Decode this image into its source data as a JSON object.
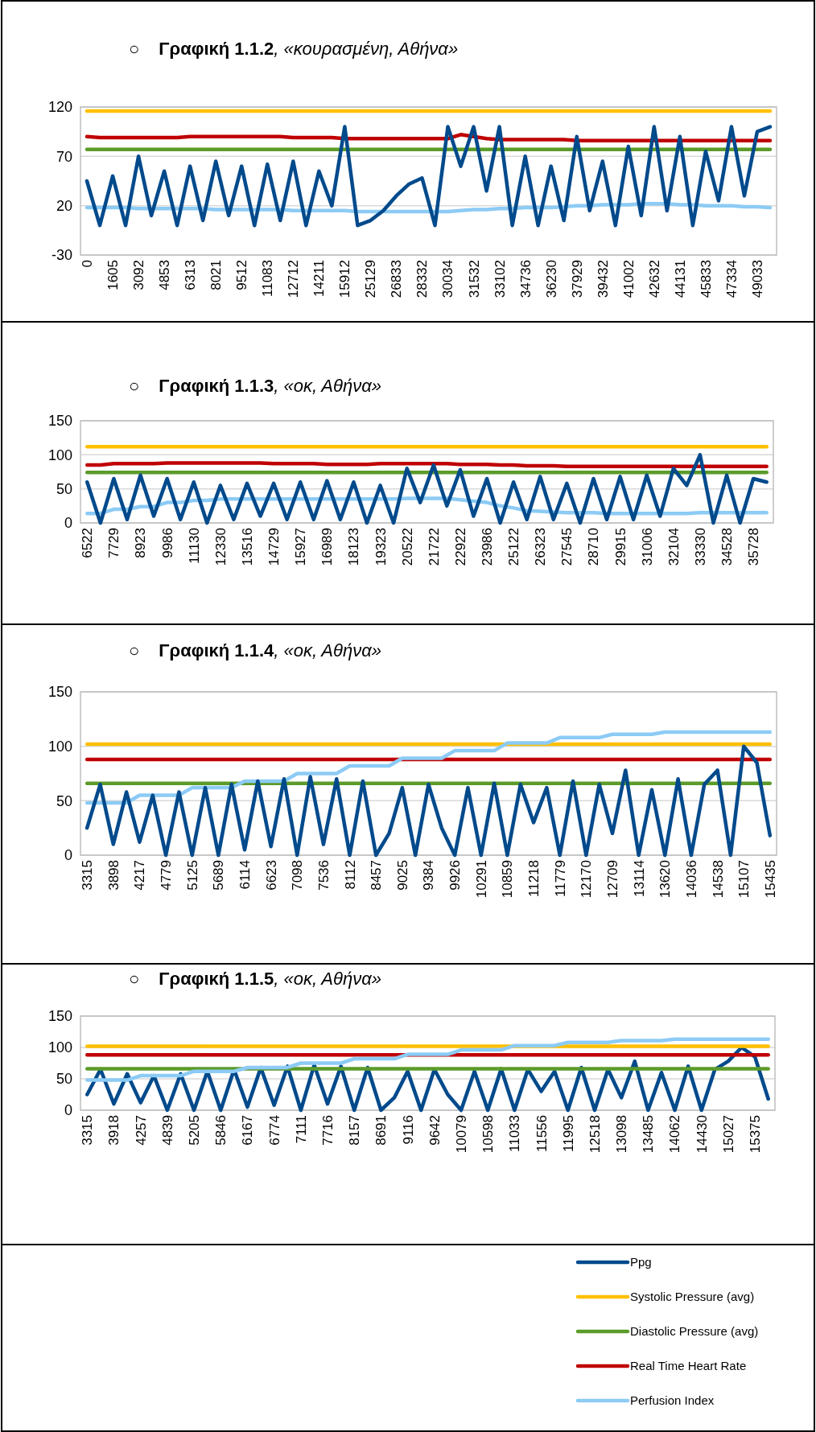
{
  "chart_data": [
    {
      "type": "line",
      "title": "○ Γραφική 1.1.2, «κουρασμένη, Αθήνα»",
      "ylim": [
        -30,
        120
      ],
      "yticks": [
        -30,
        20,
        70,
        120
      ],
      "grid": "y",
      "categories": [
        "0",
        null,
        "1605",
        null,
        "3092",
        null,
        "4853",
        null,
        "6313",
        null,
        "8021",
        null,
        "9512",
        null,
        "11083",
        null,
        "12712",
        null,
        "14211",
        null,
        "15912",
        null,
        "25129",
        null,
        "26833",
        null,
        "28332",
        null,
        "30034",
        null,
        "31532",
        null,
        "33102",
        null,
        "34736",
        null,
        "36230",
        null,
        "37929",
        null,
        "39432",
        null,
        "41002",
        null,
        "42632",
        null,
        "44131",
        null,
        "45833",
        null,
        "47334",
        null,
        "49033",
        null
      ],
      "series": [
        {
          "color": "#ffc000",
          "values": [
            116,
            116,
            116,
            116,
            116,
            116,
            116,
            116,
            116,
            116,
            116,
            116,
            116,
            116,
            116,
            116,
            116,
            116,
            116,
            116,
            116,
            116,
            116,
            116,
            116,
            116,
            116,
            116,
            116,
            116,
            116,
            116,
            116,
            116,
            116,
            116,
            116,
            116,
            116,
            116,
            116,
            116,
            116,
            116,
            116,
            116,
            116,
            116,
            116,
            116,
            116,
            116,
            116,
            116
          ]
        },
        {
          "color": "#5b9b2a",
          "values": [
            77,
            77,
            77,
            77,
            77,
            77,
            77,
            77,
            77,
            77,
            77,
            77,
            77,
            77,
            77,
            77,
            77,
            77,
            77,
            77,
            77,
            77,
            77,
            77,
            77,
            77,
            77,
            77,
            77,
            77,
            77,
            77,
            77,
            77,
            77,
            77,
            77,
            77,
            77,
            77,
            77,
            77,
            77,
            77,
            77,
            77,
            77,
            77,
            77,
            77,
            77,
            77,
            77,
            77
          ]
        },
        {
          "color": "#8ccbf5",
          "values": [
            18,
            18,
            18,
            18,
            17,
            17,
            17,
            17,
            17,
            17,
            16,
            16,
            16,
            16,
            16,
            16,
            15,
            15,
            15,
            15,
            15,
            14,
            14,
            14,
            14,
            14,
            14,
            14,
            14,
            15,
            16,
            16,
            17,
            17,
            18,
            18,
            18,
            19,
            20,
            20,
            21,
            21,
            21,
            22,
            22,
            22,
            21,
            21,
            20,
            20,
            20,
            19,
            19,
            18
          ]
        },
        {
          "color": "#c00000",
          "values": [
            90,
            89,
            89,
            89,
            89,
            89,
            89,
            89,
            90,
            90,
            90,
            90,
            90,
            90,
            90,
            90,
            89,
            89,
            89,
            89,
            88,
            88,
            88,
            88,
            88,
            88,
            88,
            88,
            88,
            92,
            90,
            88,
            87,
            87,
            87,
            87,
            87,
            87,
            86,
            86,
            86,
            86,
            86,
            86,
            86,
            86,
            86,
            86,
            86,
            86,
            86,
            86,
            86,
            86
          ]
        },
        {
          "color": "#004a8c",
          "values": [
            45,
            0,
            50,
            0,
            70,
            10,
            55,
            0,
            60,
            5,
            65,
            10,
            60,
            0,
            62,
            5,
            65,
            0,
            55,
            20,
            100,
            0,
            5,
            15,
            30,
            42,
            48,
            0,
            100,
            60,
            100,
            35,
            100,
            0,
            70,
            0,
            60,
            5,
            90,
            15,
            65,
            0,
            80,
            10,
            100,
            15,
            90,
            0,
            75,
            25,
            100,
            30,
            95,
            100
          ]
        }
      ]
    },
    {
      "type": "line",
      "title": "○ Γραφική 1.1.3, «οκ, Αθήνα»",
      "ylim": [
        0,
        150
      ],
      "yticks": [
        0,
        50,
        100,
        150
      ],
      "grid": "y",
      "categories": [
        "6522",
        null,
        "7729",
        null,
        "8923",
        null,
        "9986",
        null,
        "11130",
        null,
        "12330",
        null,
        "13516",
        null,
        "14729",
        null,
        "15927",
        null,
        "16989",
        null,
        "18123",
        null,
        "19323",
        null,
        "20522",
        null,
        "21722",
        null,
        "22922",
        null,
        "23986",
        null,
        "25122",
        null,
        "26323",
        null,
        "27545",
        null,
        "28710",
        null,
        "29915",
        null,
        "31006",
        null,
        "32104",
        null,
        "33330",
        null,
        "34528",
        null,
        "35728",
        null
      ],
      "series": [
        {
          "color": "#ffc000",
          "values": [
            112,
            112,
            112,
            112,
            112,
            112,
            112,
            112,
            112,
            112,
            112,
            112,
            112,
            112,
            112,
            112,
            112,
            112,
            112,
            112,
            112,
            112,
            112,
            112,
            112,
            112,
            112,
            112,
            112,
            112,
            112,
            112,
            112,
            112,
            112,
            112,
            112,
            112,
            112,
            112,
            112,
            112,
            112,
            112,
            112,
            112,
            112,
            112,
            112,
            112,
            112,
            112
          ]
        },
        {
          "color": "#5b9b2a",
          "values": [
            74,
            74,
            74,
            74,
            74,
            74,
            74,
            74,
            74,
            74,
            74,
            74,
            74,
            74,
            74,
            74,
            74,
            74,
            74,
            74,
            74,
            74,
            74,
            74,
            74,
            74,
            74,
            74,
            74,
            74,
            74,
            74,
            74,
            74,
            74,
            74,
            74,
            74,
            74,
            74,
            74,
            74,
            74,
            74,
            74,
            74,
            74,
            74,
            74,
            74,
            74,
            74
          ]
        },
        {
          "color": "#8ccbf5",
          "values": [
            14,
            14,
            20,
            20,
            24,
            24,
            30,
            30,
            33,
            33,
            35,
            35,
            35,
            35,
            35,
            35,
            35,
            35,
            35,
            35,
            35,
            35,
            35,
            35,
            36,
            36,
            36,
            36,
            34,
            32,
            30,
            25,
            22,
            18,
            17,
            16,
            15,
            15,
            15,
            14,
            14,
            14,
            14,
            14,
            14,
            14,
            15,
            15,
            15,
            15,
            15,
            15
          ]
        },
        {
          "color": "#c00000",
          "values": [
            85,
            85,
            87,
            87,
            87,
            87,
            88,
            88,
            88,
            88,
            88,
            88,
            88,
            88,
            87,
            87,
            87,
            87,
            86,
            86,
            86,
            86,
            87,
            87,
            87,
            87,
            87,
            87,
            86,
            86,
            86,
            85,
            85,
            84,
            84,
            84,
            83,
            83,
            83,
            83,
            83,
            83,
            83,
            83,
            83,
            83,
            83,
            83,
            83,
            83,
            83,
            83
          ]
        },
        {
          "color": "#004a8c",
          "values": [
            60,
            0,
            65,
            5,
            70,
            10,
            65,
            5,
            60,
            0,
            55,
            5,
            58,
            10,
            58,
            5,
            60,
            5,
            62,
            5,
            60,
            0,
            55,
            0,
            80,
            30,
            85,
            25,
            78,
            10,
            65,
            0,
            60,
            5,
            68,
            5,
            58,
            0,
            65,
            5,
            68,
            5,
            70,
            10,
            80,
            55,
            100,
            0,
            70,
            0,
            65,
            60
          ]
        }
      ]
    },
    {
      "type": "line",
      "title": "○ Γραφική 1.1.4, «οκ, Αθήνα»",
      "ylim": [
        0,
        150
      ],
      "yticks": [
        0,
        50,
        100,
        150
      ],
      "grid": "y",
      "categories": [
        "3315",
        null,
        "3898",
        null,
        "4217",
        null,
        "4779",
        null,
        "5125",
        null,
        "5689",
        null,
        "6114",
        null,
        "6623",
        null,
        "7098",
        null,
        "7536",
        null,
        "8112",
        null,
        "8457",
        null,
        "9025",
        null,
        "9384",
        null,
        "9926",
        null,
        "10291",
        null,
        "10859",
        null,
        "11218",
        null,
        "11779",
        null,
        "12170",
        null,
        "12709",
        null,
        "13114",
        null,
        "13620",
        null,
        "14036",
        null,
        "14538",
        null,
        "15107",
        null,
        "15435"
      ],
      "series": [
        {
          "color": "#ffc000",
          "values": [
            102,
            102,
            102,
            102,
            102,
            102,
            102,
            102,
            102,
            102,
            102,
            102,
            102,
            102,
            102,
            102,
            102,
            102,
            102,
            102,
            102,
            102,
            102,
            102,
            102,
            102,
            102,
            102,
            102,
            102,
            102,
            102,
            102,
            102,
            102,
            102,
            102,
            102,
            102,
            102,
            102,
            102,
            102,
            102,
            102,
            102,
            102,
            102,
            102,
            102,
            102,
            102,
            102
          ]
        },
        {
          "color": "#5b9b2a",
          "values": [
            66,
            66,
            66,
            66,
            66,
            66,
            66,
            66,
            66,
            66,
            66,
            66,
            66,
            66,
            66,
            66,
            66,
            66,
            66,
            66,
            66,
            66,
            66,
            66,
            66,
            66,
            66,
            66,
            66,
            66,
            66,
            66,
            66,
            66,
            66,
            66,
            66,
            66,
            66,
            66,
            66,
            66,
            66,
            66,
            66,
            66,
            66,
            66,
            66,
            66,
            66,
            66,
            66
          ]
        },
        {
          "color": "#c00000",
          "values": [
            88,
            88,
            88,
            88,
            88,
            88,
            88,
            88,
            88,
            88,
            88,
            88,
            88,
            88,
            88,
            88,
            88,
            88,
            88,
            88,
            88,
            88,
            88,
            88,
            88,
            88,
            88,
            88,
            88,
            88,
            88,
            88,
            88,
            88,
            88,
            88,
            88,
            88,
            88,
            88,
            88,
            88,
            88,
            88,
            88,
            88,
            88,
            88,
            88,
            88,
            88,
            88,
            88
          ]
        },
        {
          "color": "#8ccbf5",
          "values": [
            48,
            48,
            48,
            48,
            55,
            55,
            55,
            55,
            62,
            62,
            62,
            62,
            68,
            68,
            68,
            68,
            75,
            75,
            75,
            75,
            82,
            82,
            82,
            82,
            89,
            89,
            89,
            89,
            96,
            96,
            96,
            96,
            103,
            103,
            103,
            103,
            108,
            108,
            108,
            108,
            111,
            111,
            111,
            111,
            113,
            113,
            113,
            113,
            113,
            113,
            113,
            113,
            113
          ]
        },
        {
          "color": "#004a8c",
          "values": [
            25,
            65,
            10,
            58,
            12,
            55,
            0,
            58,
            0,
            62,
            0,
            65,
            5,
            68,
            8,
            70,
            0,
            72,
            10,
            70,
            0,
            68,
            0,
            20,
            62,
            0,
            65,
            25,
            0,
            62,
            0,
            66,
            0,
            65,
            30,
            62,
            0,
            68,
            0,
            65,
            20,
            78,
            0,
            60,
            0,
            70,
            0,
            65,
            78,
            0,
            100,
            85,
            18
          ]
        }
      ]
    },
    {
      "type": "line",
      "title": "○ Γραφική 1.1.5, «οκ, Αθήνα»",
      "ylim": [
        0,
        150
      ],
      "yticks": [
        0,
        50,
        100,
        150
      ],
      "grid": "y",
      "legend": "bottom right",
      "categories": [
        "3315",
        null,
        "3918",
        null,
        "4257",
        null,
        "4839",
        null,
        "5205",
        null,
        "5846",
        null,
        "6167",
        null,
        "6774",
        null,
        "7111",
        null,
        "7716",
        null,
        "8157",
        null,
        "8691",
        null,
        "9116",
        null,
        "9642",
        null,
        "10079",
        null,
        "10598",
        null,
        "11033",
        null,
        "11556",
        null,
        "11995",
        null,
        "12518",
        null,
        "13098",
        null,
        "13485",
        null,
        "14062",
        null,
        "14430",
        null,
        "15027",
        null,
        "15375",
        null
      ],
      "series": [
        {
          "name": "Ppg",
          "color": "#004a8c",
          "values": [
            25,
            65,
            10,
            58,
            12,
            55,
            0,
            58,
            0,
            62,
            0,
            65,
            5,
            68,
            8,
            70,
            0,
            72,
            10,
            70,
            0,
            68,
            0,
            20,
            62,
            0,
            65,
            25,
            0,
            62,
            0,
            66,
            0,
            65,
            30,
            62,
            0,
            68,
            0,
            65,
            20,
            78,
            0,
            60,
            0,
            70,
            0,
            65,
            78,
            100,
            85,
            18
          ]
        },
        {
          "name": "Systolic Pressure (avg)",
          "color": "#ffc000",
          "values": [
            102,
            102,
            102,
            102,
            102,
            102,
            102,
            102,
            102,
            102,
            102,
            102,
            102,
            102,
            102,
            102,
            102,
            102,
            102,
            102,
            102,
            102,
            102,
            102,
            102,
            102,
            102,
            102,
            102,
            102,
            102,
            102,
            102,
            102,
            102,
            102,
            102,
            102,
            102,
            102,
            102,
            102,
            102,
            102,
            102,
            102,
            102,
            102,
            102,
            102,
            102,
            102
          ]
        },
        {
          "name": "Diastolic Pressure (avg)",
          "color": "#5b9b2a",
          "values": [
            66,
            66,
            66,
            66,
            66,
            66,
            66,
            66,
            66,
            66,
            66,
            66,
            66,
            66,
            66,
            66,
            66,
            66,
            66,
            66,
            66,
            66,
            66,
            66,
            66,
            66,
            66,
            66,
            66,
            66,
            66,
            66,
            66,
            66,
            66,
            66,
            66,
            66,
            66,
            66,
            66,
            66,
            66,
            66,
            66,
            66,
            66,
            66,
            66,
            66,
            66,
            66
          ]
        },
        {
          "name": "Real Time Heart Rate",
          "color": "#c00000",
          "values": [
            88,
            88,
            88,
            88,
            88,
            88,
            88,
            88,
            88,
            88,
            88,
            88,
            88,
            88,
            88,
            88,
            88,
            88,
            88,
            88,
            88,
            88,
            88,
            88,
            88,
            88,
            88,
            88,
            88,
            88,
            88,
            88,
            88,
            88,
            88,
            88,
            88,
            88,
            88,
            88,
            88,
            88,
            88,
            88,
            88,
            88,
            88,
            88,
            88,
            88,
            88,
            88
          ]
        },
        {
          "name": "Perfusion Index",
          "color": "#8ccbf5",
          "values": [
            48,
            48,
            48,
            48,
            55,
            55,
            55,
            55,
            62,
            62,
            62,
            62,
            68,
            68,
            68,
            68,
            75,
            75,
            75,
            75,
            82,
            82,
            82,
            82,
            89,
            89,
            89,
            89,
            96,
            96,
            96,
            96,
            103,
            103,
            103,
            103,
            108,
            108,
            108,
            108,
            111,
            111,
            111,
            111,
            113,
            113,
            113,
            113,
            113,
            113,
            113,
            113
          ]
        }
      ]
    }
  ]
}
